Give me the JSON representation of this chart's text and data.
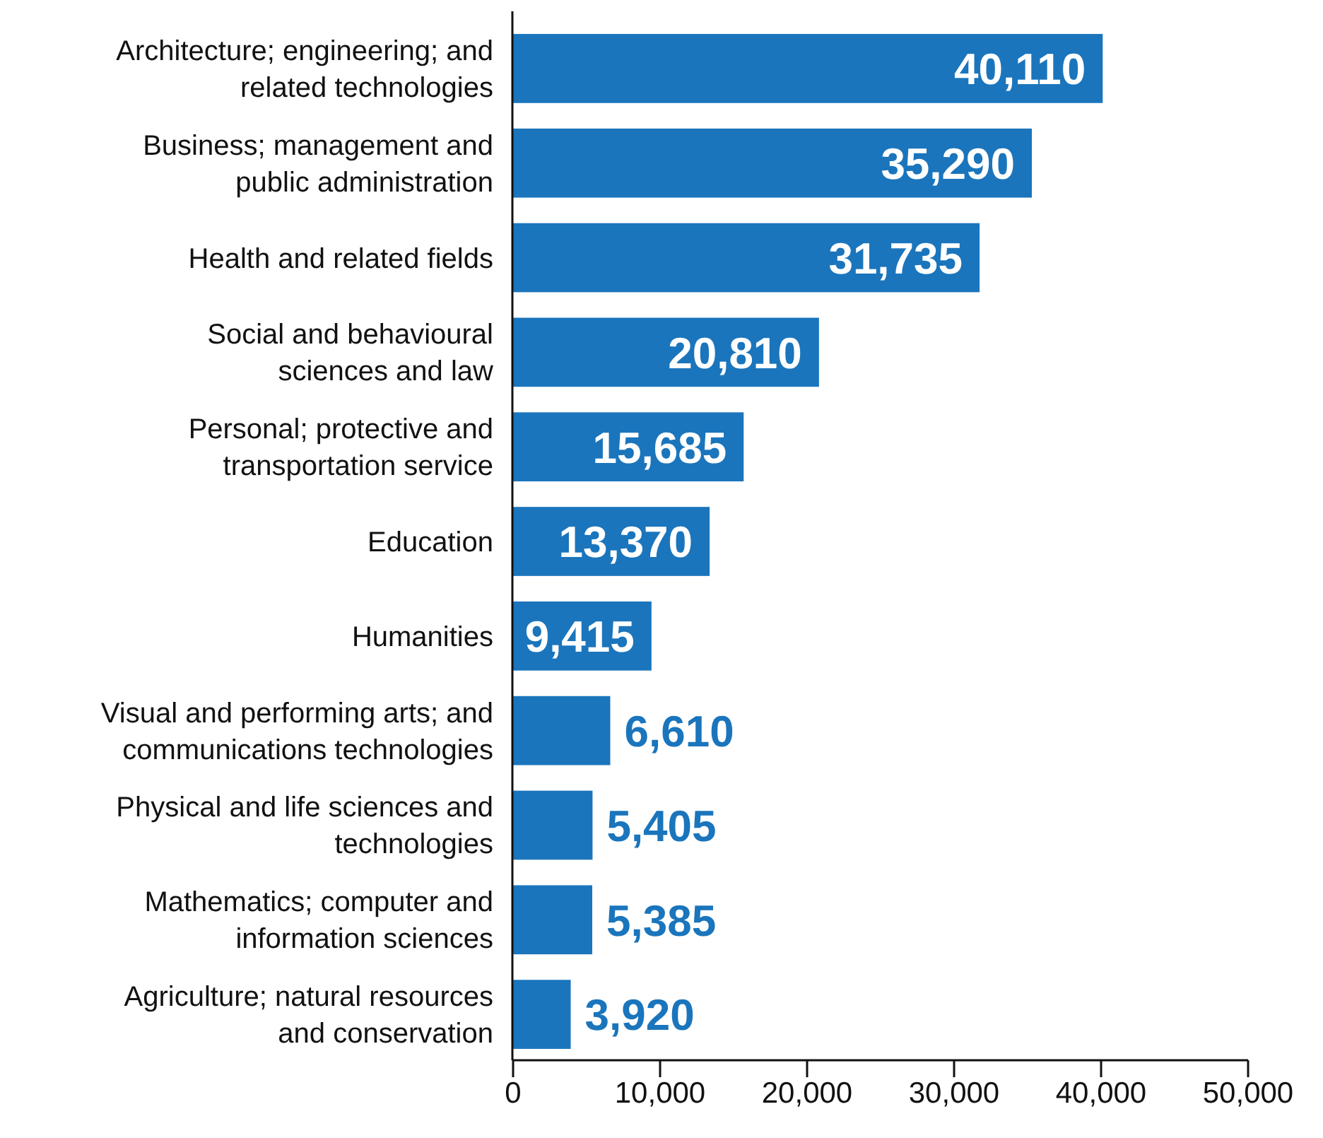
{
  "chart_data": {
    "type": "bar",
    "orientation": "horizontal",
    "categories": [
      "Architecture; engineering; and related technologies",
      "Business; management and public administration",
      "Health and related fields",
      "Social and behavioural sciences and law",
      "Personal; protective and transportation service",
      "Education",
      "Humanities",
      "Visual and performing arts; and communications technologies",
      "Physical and life sciences and technologies",
      "Mathematics; computer and information sciences",
      "Agriculture; natural resources and conservation"
    ],
    "values": [
      40110,
      35290,
      31735,
      20810,
      15685,
      13370,
      9415,
      6610,
      5405,
      5385,
      3920
    ],
    "color": "#1a75bc",
    "xlim": [
      0,
      50000
    ],
    "xticks": [
      {
        "value": 0,
        "label": "0"
      },
      {
        "value": 10000,
        "label": "10,000"
      },
      {
        "value": 20000,
        "label": "20,000"
      },
      {
        "value": 30000,
        "label": "30,000"
      },
      {
        "value": 40000,
        "label": "40,000"
      },
      {
        "value": 50000,
        "label": "50,000"
      }
    ],
    "value_labels": [
      "40,110",
      "35,290",
      "31,735",
      "20,810",
      "15,685",
      "13,370",
      "9,415",
      "6,610",
      "5,405",
      "5,385",
      "3,920"
    ],
    "grid": false
  }
}
